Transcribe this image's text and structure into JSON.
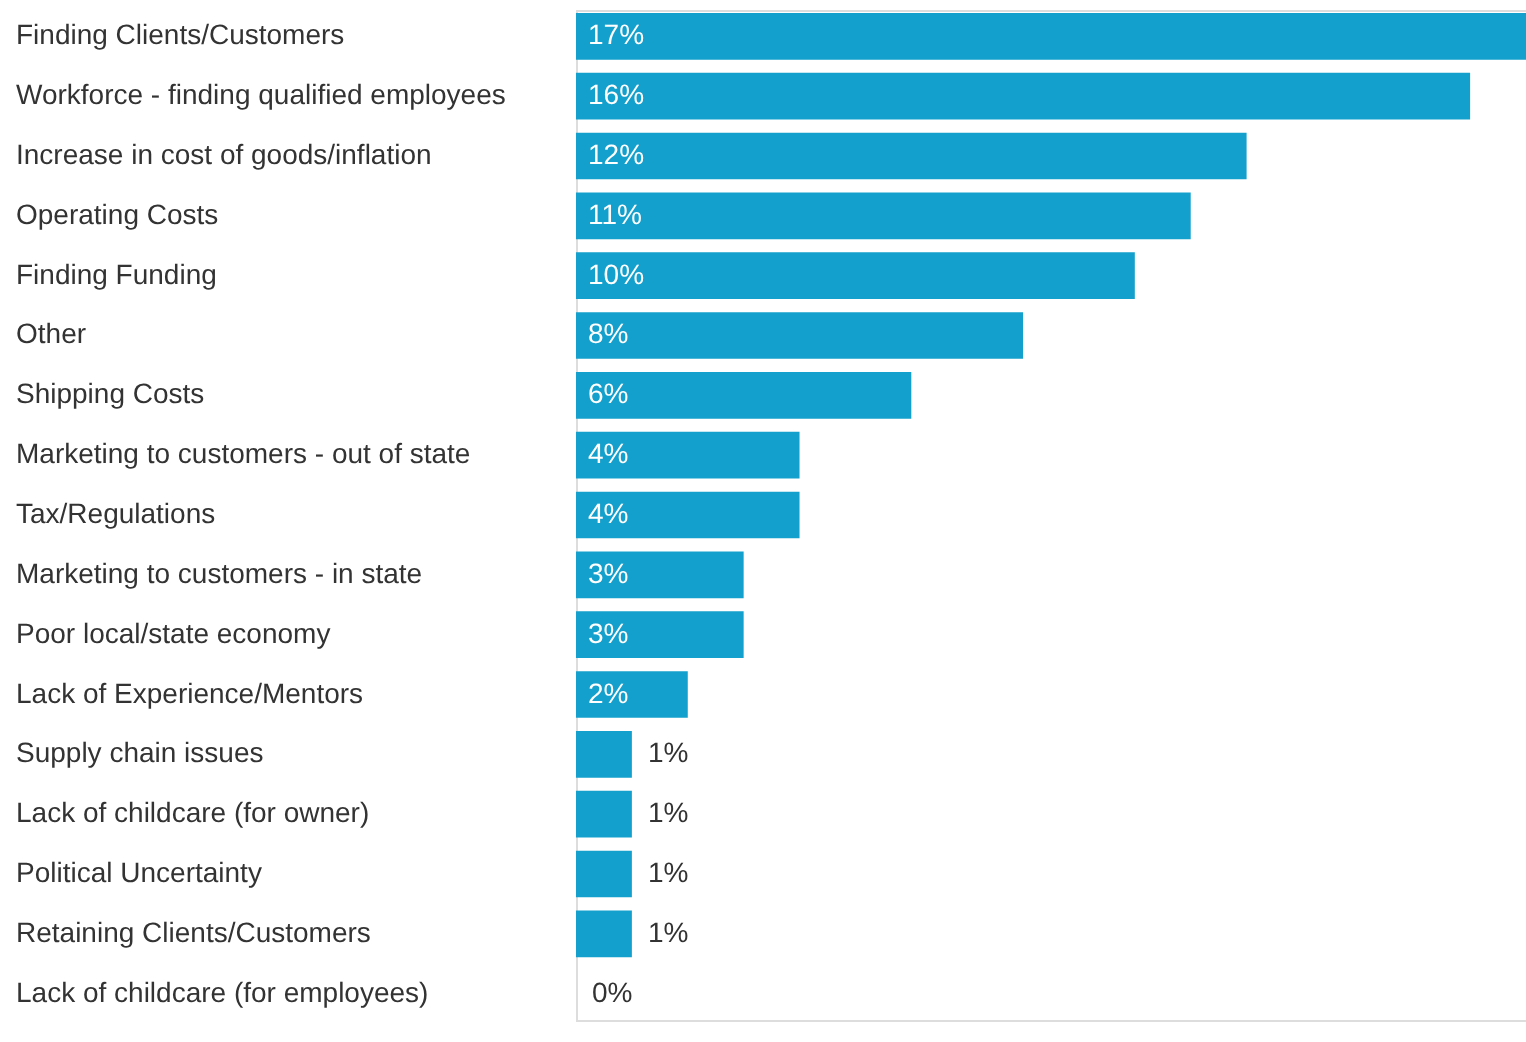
{
  "chart_data": {
    "type": "bar",
    "orientation": "horizontal",
    "categories": [
      "Finding Clients/Customers",
      "Workforce - finding qualified employees",
      "Increase in cost of goods/inflation",
      "Operating Costs",
      "Finding Funding",
      "Other",
      "Shipping Costs",
      "Marketing to customers - out of state",
      "Tax/Regulations",
      "Marketing to customers - in state",
      "Poor local/state economy",
      "Lack of Experience/Mentors",
      "Supply chain issues",
      "Lack of childcare (for owner)",
      "Political Uncertainty",
      "Retaining Clients/Customers",
      "Lack of childcare (for employees)"
    ],
    "values": [
      17,
      16,
      12,
      11,
      10,
      8,
      6,
      4,
      4,
      3,
      3,
      2,
      1,
      1,
      1,
      1,
      0
    ],
    "value_labels": [
      "17%",
      "16%",
      "12%",
      "11%",
      "10%",
      "8%",
      "6%",
      "4%",
      "4%",
      "3%",
      "3%",
      "2%",
      "1%",
      "1%",
      "1%",
      "1%",
      "0%"
    ],
    "color": "#14a0cc"
  }
}
